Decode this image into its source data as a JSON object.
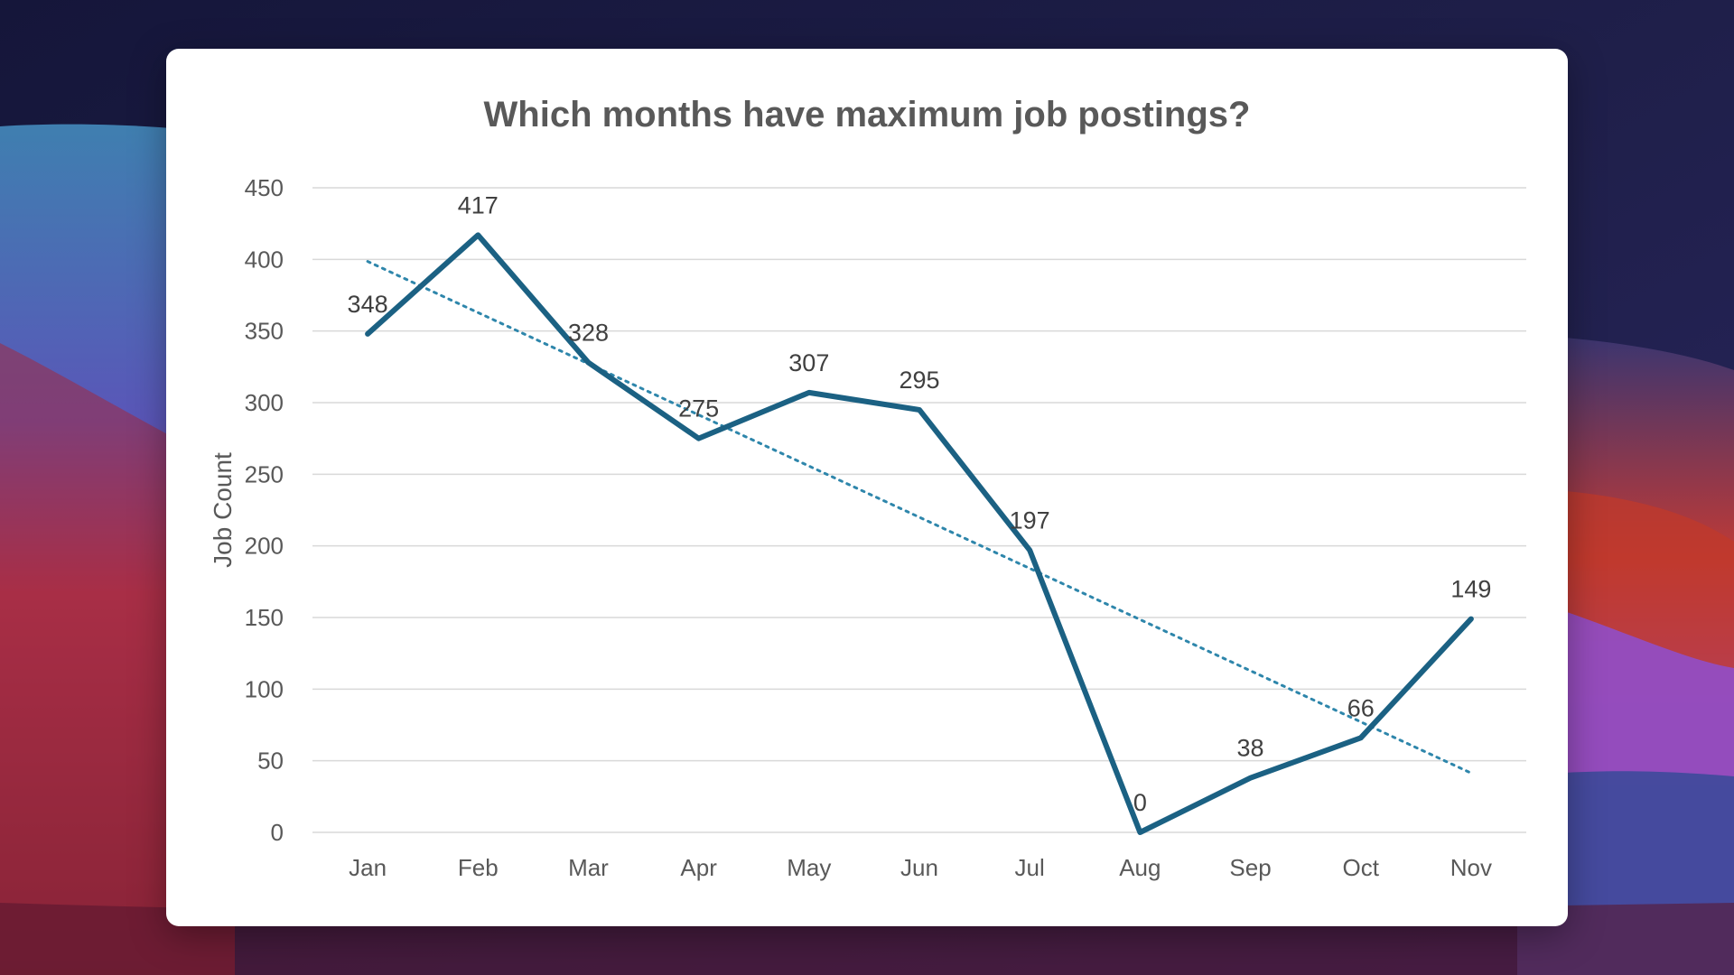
{
  "chart_data": {
    "type": "line",
    "title": "Which months have maximum job postings?",
    "xlabel": "",
    "ylabel": "Job Count",
    "categories": [
      "Jan",
      "Feb",
      "Mar",
      "Apr",
      "May",
      "Jun",
      "Jul",
      "Aug",
      "Sep",
      "Oct",
      "Nov"
    ],
    "values": [
      348,
      417,
      328,
      275,
      307,
      295,
      197,
      0,
      38,
      66,
      149
    ],
    "ylim": [
      0,
      450
    ],
    "yticks": [
      0,
      50,
      100,
      150,
      200,
      250,
      300,
      350,
      400,
      450
    ],
    "data_labels": true,
    "trendline": "linear",
    "grid": true,
    "legend": "none"
  },
  "colors": {
    "series": "#1b6183",
    "trendline": "#2e86ab",
    "card": "#ffffff"
  }
}
